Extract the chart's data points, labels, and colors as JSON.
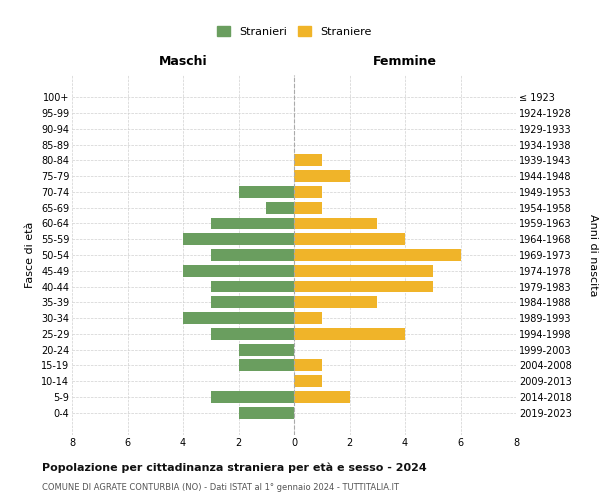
{
  "age_groups": [
    "100+",
    "95-99",
    "90-94",
    "85-89",
    "80-84",
    "75-79",
    "70-74",
    "65-69",
    "60-64",
    "55-59",
    "50-54",
    "45-49",
    "40-44",
    "35-39",
    "30-34",
    "25-29",
    "20-24",
    "15-19",
    "10-14",
    "5-9",
    "0-4"
  ],
  "birth_years": [
    "≤ 1923",
    "1924-1928",
    "1929-1933",
    "1934-1938",
    "1939-1943",
    "1944-1948",
    "1949-1953",
    "1954-1958",
    "1959-1963",
    "1964-1968",
    "1969-1973",
    "1974-1978",
    "1979-1983",
    "1984-1988",
    "1989-1993",
    "1994-1998",
    "1999-2003",
    "2004-2008",
    "2009-2013",
    "2014-2018",
    "2019-2023"
  ],
  "males": [
    0,
    0,
    0,
    0,
    0,
    0,
    2,
    1,
    3,
    4,
    3,
    4,
    3,
    3,
    4,
    3,
    2,
    2,
    0,
    3,
    2
  ],
  "females": [
    0,
    0,
    0,
    0,
    1,
    2,
    1,
    1,
    3,
    4,
    6,
    5,
    5,
    3,
    1,
    4,
    0,
    1,
    1,
    2,
    0
  ],
  "male_color": "#6a9e5f",
  "female_color": "#f0b429",
  "title": "Popolazione per cittadinanza straniera per età e sesso - 2024",
  "subtitle": "COMUNE DI AGRATE CONTURBIA (NO) - Dati ISTAT al 1° gennaio 2024 - TUTTITALIA.IT",
  "left_label": "Maschi",
  "right_label": "Femmine",
  "y_left_label": "Fasce di età",
  "y_right_label": "Anni di nascita",
  "legend_male": "Stranieri",
  "legend_female": "Straniere",
  "xlim": 8,
  "background_color": "#ffffff",
  "grid_color": "#d0d0d0",
  "bar_height": 0.75
}
